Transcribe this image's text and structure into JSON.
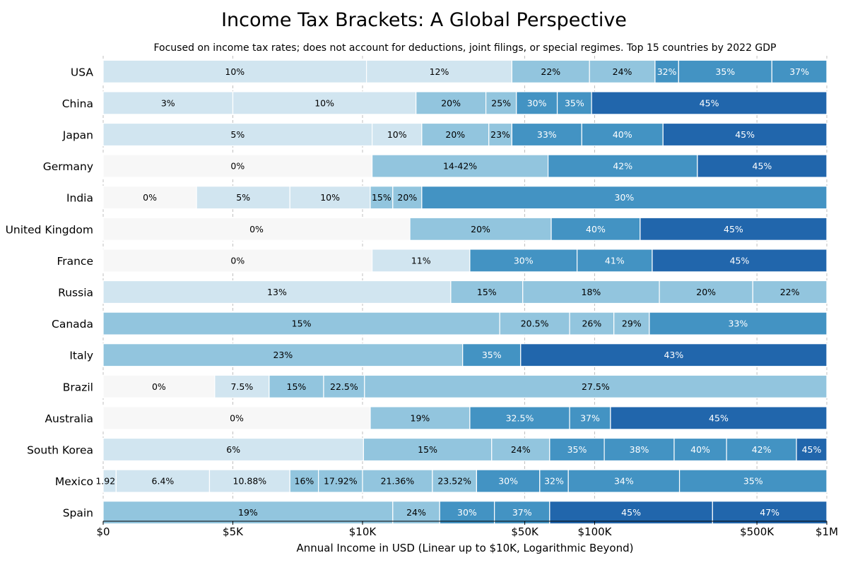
{
  "chart_data": {
    "type": "bar",
    "orientation": "horizontal",
    "stacked": true,
    "title": "Income Tax Brackets: A Global Perspective",
    "subtitle": "Focused on income tax rates; does not account for deductions, joint filings, or special regimes. Top 15 countries by 2022 GDP",
    "xlabel": "Annual Income in USD (Linear up to $10K, Logarithmic Beyond)",
    "x_scale": "linear up to 10000, logarithmic beyond",
    "xlim": [
      0,
      1000000
    ],
    "x_ticks": [
      {
        "value": 0,
        "label": "$0"
      },
      {
        "value": 5000,
        "label": "$5K"
      },
      {
        "value": 10000,
        "label": "$10K"
      },
      {
        "value": 50000,
        "label": "$50K"
      },
      {
        "value": 100000,
        "label": "$100K"
      },
      {
        "value": 500000,
        "label": "$500K"
      },
      {
        "value": 1000000,
        "label": "$1M"
      }
    ],
    "grid": "vertical dashed lines at x ticks",
    "colors": {
      "0": "#f7f7f7",
      "light": "#d1e5f0",
      "mid": "#92c5de",
      "strong": "#4393c3",
      "dark": "#2166ac"
    },
    "countries": [
      {
        "name": "USA",
        "brackets": [
          {
            "start": 0,
            "end": 10400,
            "label": "10%"
          },
          {
            "start": 10400,
            "end": 44000,
            "label": "12%"
          },
          {
            "start": 44000,
            "end": 95000,
            "label": "22%"
          },
          {
            "start": 95000,
            "end": 182000,
            "label": "24%"
          },
          {
            "start": 182000,
            "end": 230000,
            "label": "32%"
          },
          {
            "start": 230000,
            "end": 580000,
            "label": "35%"
          },
          {
            "start": 580000,
            "end": 1000000,
            "label": "37%"
          }
        ]
      },
      {
        "name": "China",
        "brackets": [
          {
            "start": 0,
            "end": 5000,
            "label": "3%"
          },
          {
            "start": 5000,
            "end": 17000,
            "label": "10%"
          },
          {
            "start": 17000,
            "end": 34000,
            "label": "20%"
          },
          {
            "start": 34000,
            "end": 46000,
            "label": "25%"
          },
          {
            "start": 46000,
            "end": 69000,
            "label": "30%"
          },
          {
            "start": 69000,
            "end": 97000,
            "label": "35%"
          },
          {
            "start": 97000,
            "end": 1000000,
            "label": "45%"
          }
        ]
      },
      {
        "name": "Japan",
        "brackets": [
          {
            "start": 0,
            "end": 11000,
            "label": "5%"
          },
          {
            "start": 11000,
            "end": 18000,
            "label": "10%"
          },
          {
            "start": 18000,
            "end": 35000,
            "label": "20%"
          },
          {
            "start": 35000,
            "end": 44000,
            "label": "23%"
          },
          {
            "start": 44000,
            "end": 88000,
            "label": "33%"
          },
          {
            "start": 88000,
            "end": 197000,
            "label": "40%"
          },
          {
            "start": 197000,
            "end": 1000000,
            "label": "45%"
          }
        ]
      },
      {
        "name": "Germany",
        "brackets": [
          {
            "start": 0,
            "end": 11000,
            "label": "0%"
          },
          {
            "start": 11000,
            "end": 63000,
            "label": "14-42%"
          },
          {
            "start": 63000,
            "end": 277000,
            "label": "42%"
          },
          {
            "start": 277000,
            "end": 1000000,
            "label": "45%"
          }
        ]
      },
      {
        "name": "India",
        "brackets": [
          {
            "start": 0,
            "end": 3600,
            "label": "0%"
          },
          {
            "start": 3600,
            "end": 7200,
            "label": "5%"
          },
          {
            "start": 7200,
            "end": 10800,
            "label": "10%"
          },
          {
            "start": 10800,
            "end": 13500,
            "label": "15%"
          },
          {
            "start": 13500,
            "end": 18000,
            "label": "20%"
          },
          {
            "start": 18000,
            "end": 1000000,
            "label": "30%"
          }
        ]
      },
      {
        "name": "United Kingdom",
        "brackets": [
          {
            "start": 0,
            "end": 16000,
            "label": "0%"
          },
          {
            "start": 16000,
            "end": 65000,
            "label": "20%"
          },
          {
            "start": 65000,
            "end": 157000,
            "label": "40%"
          },
          {
            "start": 157000,
            "end": 1000000,
            "label": "45%"
          }
        ]
      },
      {
        "name": "France",
        "brackets": [
          {
            "start": 0,
            "end": 11000,
            "label": "0%"
          },
          {
            "start": 11000,
            "end": 29000,
            "label": "11%"
          },
          {
            "start": 29000,
            "end": 84000,
            "label": "30%"
          },
          {
            "start": 84000,
            "end": 177000,
            "label": "41%"
          },
          {
            "start": 177000,
            "end": 1000000,
            "label": "45%"
          }
        ]
      },
      {
        "name": "Russia",
        "brackets": [
          {
            "start": 0,
            "end": 24000,
            "label": "13%"
          },
          {
            "start": 24000,
            "end": 49000,
            "label": "15%"
          },
          {
            "start": 49000,
            "end": 190000,
            "label": "18%"
          },
          {
            "start": 190000,
            "end": 480000,
            "label": "20%"
          },
          {
            "start": 480000,
            "end": 1000000,
            "label": "22%"
          }
        ]
      },
      {
        "name": "Canada",
        "brackets": [
          {
            "start": 0,
            "end": 39000,
            "label": "15%"
          },
          {
            "start": 39000,
            "end": 78000,
            "label": "20.5%"
          },
          {
            "start": 78000,
            "end": 121000,
            "label": "26%"
          },
          {
            "start": 121000,
            "end": 172000,
            "label": "29%"
          },
          {
            "start": 172000,
            "end": 1000000,
            "label": "33%"
          }
        ]
      },
      {
        "name": "Italy",
        "brackets": [
          {
            "start": 0,
            "end": 27000,
            "label": "23%"
          },
          {
            "start": 27000,
            "end": 48000,
            "label": "35%"
          },
          {
            "start": 48000,
            "end": 1000000,
            "label": "43%"
          }
        ]
      },
      {
        "name": "Brazil",
        "brackets": [
          {
            "start": 0,
            "end": 4300,
            "label": "0%"
          },
          {
            "start": 4300,
            "end": 6400,
            "label": "7.5%"
          },
          {
            "start": 6400,
            "end": 8500,
            "label": "15%"
          },
          {
            "start": 8500,
            "end": 10200,
            "label": "22.5%"
          },
          {
            "start": 10200,
            "end": 1000000,
            "label": "27.5%"
          }
        ]
      },
      {
        "name": "Australia",
        "brackets": [
          {
            "start": 0,
            "end": 10800,
            "label": "0%"
          },
          {
            "start": 10800,
            "end": 29000,
            "label": "19%"
          },
          {
            "start": 29000,
            "end": 78000,
            "label": "32.5%"
          },
          {
            "start": 78000,
            "end": 117000,
            "label": "37%"
          },
          {
            "start": 117000,
            "end": 1000000,
            "label": "45%"
          }
        ]
      },
      {
        "name": "South Korea",
        "brackets": [
          {
            "start": 0,
            "end": 10100,
            "label": "6%"
          },
          {
            "start": 10100,
            "end": 36000,
            "label": "15%"
          },
          {
            "start": 36000,
            "end": 64000,
            "label": "24%"
          },
          {
            "start": 64000,
            "end": 110000,
            "label": "35%"
          },
          {
            "start": 110000,
            "end": 220000,
            "label": "38%"
          },
          {
            "start": 220000,
            "end": 370000,
            "label": "40%"
          },
          {
            "start": 370000,
            "end": 740000,
            "label": "42%"
          },
          {
            "start": 740000,
            "end": 1000000,
            "label": "45%"
          }
        ]
      },
      {
        "name": "Mexico",
        "brackets": [
          {
            "start": 0,
            "end": 500,
            "label": "1.92%"
          },
          {
            "start": 500,
            "end": 4100,
            "label": "6.4%"
          },
          {
            "start": 4100,
            "end": 7200,
            "label": "10.88%"
          },
          {
            "start": 7200,
            "end": 8300,
            "label": "16%"
          },
          {
            "start": 8300,
            "end": 10000,
            "label": "17.92%"
          },
          {
            "start": 10000,
            "end": 20000,
            "label": "21.36%"
          },
          {
            "start": 20000,
            "end": 31000,
            "label": "23.52%"
          },
          {
            "start": 31000,
            "end": 58000,
            "label": "30%"
          },
          {
            "start": 58000,
            "end": 77000,
            "label": "32%"
          },
          {
            "start": 77000,
            "end": 232000,
            "label": "34%"
          },
          {
            "start": 232000,
            "end": 1000000,
            "label": "35%"
          }
        ]
      },
      {
        "name": "Spain",
        "brackets": [
          {
            "start": 0,
            "end": 13500,
            "label": "19%"
          },
          {
            "start": 13500,
            "end": 21500,
            "label": "24%"
          },
          {
            "start": 21500,
            "end": 37000,
            "label": "30%"
          },
          {
            "start": 37000,
            "end": 64000,
            "label": "37%"
          },
          {
            "start": 64000,
            "end": 322000,
            "label": "45%"
          },
          {
            "start": 322000,
            "end": 1000000,
            "label": "47%"
          }
        ]
      }
    ]
  }
}
